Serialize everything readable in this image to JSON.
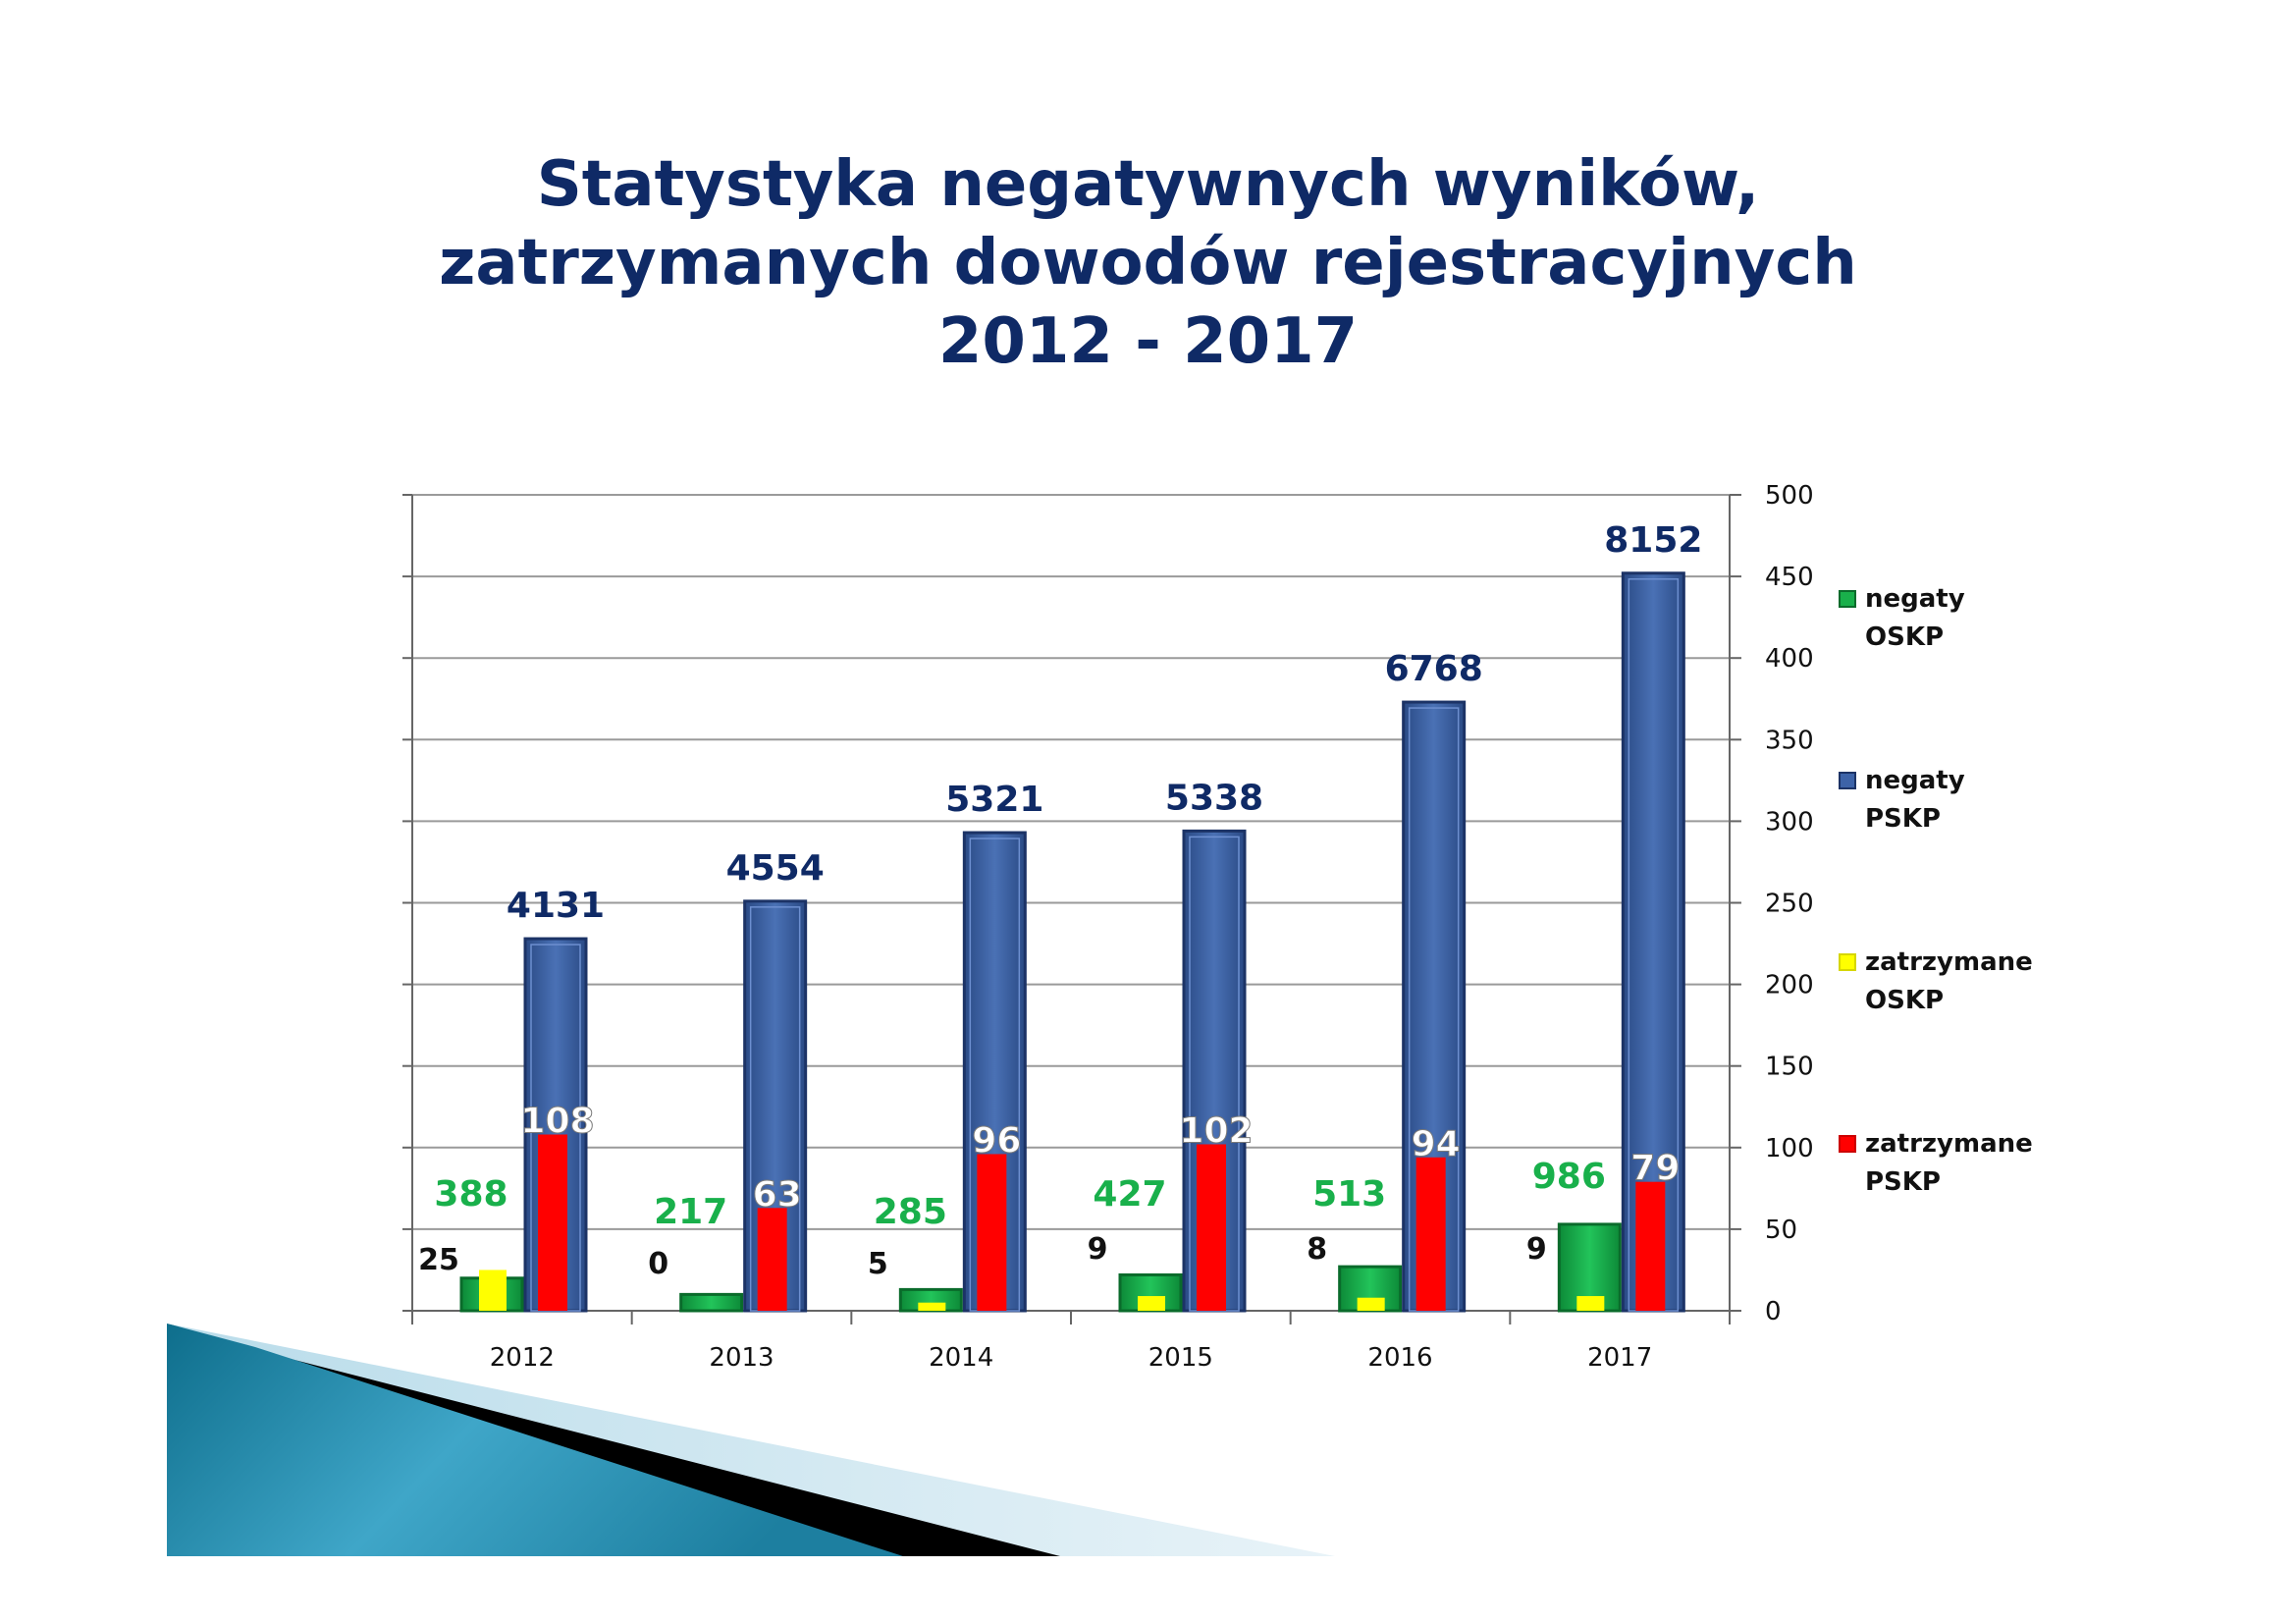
{
  "title_lines": [
    "Statystyka negatywnych wyników,",
    "zatrzymanych dowodów rejestracyjnych",
    "2012 - 2017"
  ],
  "colors": {
    "title": "#0f2a66",
    "pskp": "#3d63a8",
    "oskp": "#19b04b",
    "zatrzymane_oskp": "#ffff00",
    "zatrzymane_pskp": "#ff0000",
    "oskp_label": "#19b04b",
    "pskp_label": "#0f2a66"
  },
  "chart_data": {
    "type": "bar",
    "title": "Statystyka negatywnych wyników, zatrzymanych dowodów rejestracyjnych 2012 - 2017",
    "categories": [
      "2012",
      "2013",
      "2014",
      "2015",
      "2016",
      "2017"
    ],
    "ylim": [
      0,
      500
    ],
    "yticks": [
      0,
      50,
      100,
      150,
      200,
      250,
      300,
      350,
      400,
      450,
      500
    ],
    "y_axis_position": "right",
    "grid": true,
    "legend_position": "right",
    "series": [
      {
        "name": "negaty OSKP",
        "legend_lines": [
          "negaty",
          "OSKP"
        ],
        "values": [
          20,
          10,
          13,
          22,
          27,
          53
        ],
        "labels": [
          "388",
          "217",
          "285",
          "427",
          "513",
          "986"
        ]
      },
      {
        "name": "negaty PSKP",
        "legend_lines": [
          "negaty",
          "PSKP"
        ],
        "values": [
          228,
          251,
          293,
          294,
          373,
          452
        ],
        "labels": [
          "4131",
          "4554",
          "5321",
          "5338",
          "6768",
          "8152"
        ]
      },
      {
        "name": "zatrzymane OSKP",
        "legend_lines": [
          "zatrzymane",
          "OSKP"
        ],
        "values": [
          25,
          0,
          5,
          9,
          8,
          9
        ],
        "labels": [
          "25",
          "0",
          "5",
          "9",
          "8",
          "9"
        ]
      },
      {
        "name": "zatrzymane PSKP",
        "legend_lines": [
          "zatrzymane",
          "PSKP"
        ],
        "values": [
          108,
          63,
          96,
          102,
          94,
          79
        ],
        "labels": [
          "108",
          "63",
          "96",
          "102",
          "94",
          "79"
        ]
      }
    ]
  }
}
